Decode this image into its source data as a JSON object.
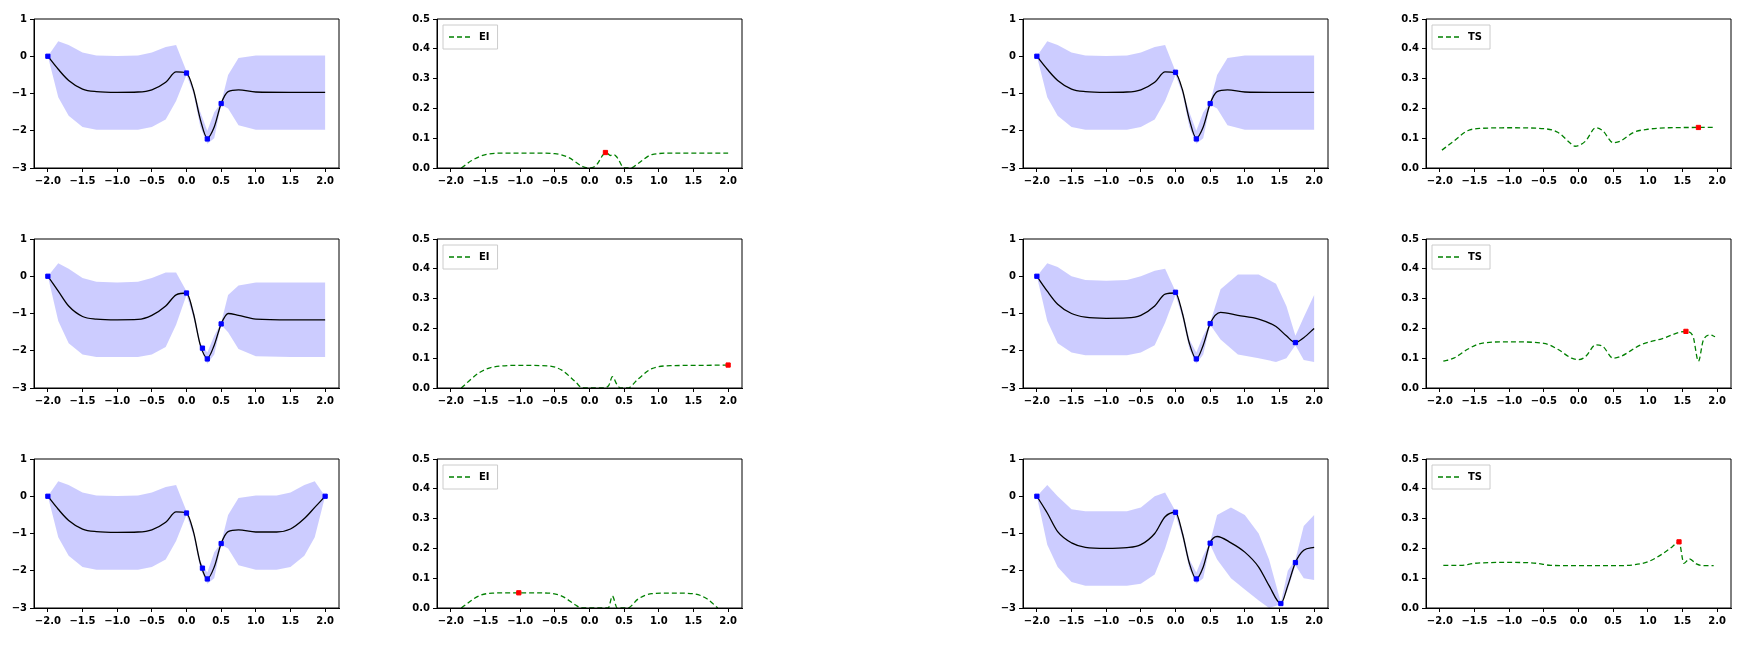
{
  "chart_data": [
    {
      "type": "line",
      "xlim": [
        -2.2,
        2.2
      ],
      "xticks": [
        {
          "value": -2,
          "label": "−2.0"
        },
        {
          "value": -1.5,
          "label": "−1.5"
        },
        {
          "value": -1,
          "label": "−1.0"
        },
        {
          "value": -0.5,
          "label": "−0.5"
        },
        {
          "value": 0,
          "label": "0.0"
        },
        {
          "value": 0.5,
          "label": "0.5"
        },
        {
          "value": 1,
          "label": "1.0"
        },
        {
          "value": 1.5,
          "label": "1.5"
        },
        {
          "value": 2,
          "label": "2.0"
        }
      ],
      "ylim": [
        -3,
        1
      ],
      "yticks": [
        {
          "value": -3,
          "label": "−3"
        },
        {
          "value": -2,
          "label": "−2"
        },
        {
          "value": -1,
          "label": "−1"
        },
        0,
        1
      ],
      "grid": false,
      "legend": false,
      "series": [
        {
          "color": "#000000",
          "marker": "none",
          "x": [
            -2,
            -1.85,
            -1.7,
            -1.5,
            -1.3,
            -1,
            -0.7,
            -0.5,
            -0.3,
            -0.15,
            0,
            0.1,
            0.2,
            0.3,
            0.4,
            0.5,
            0.6,
            0.75,
            1,
            1.5,
            2
          ],
          "values": [
            0,
            -0.35,
            -0.65,
            -0.88,
            -0.95,
            -0.97,
            -0.96,
            -0.9,
            -0.7,
            -0.42,
            -0.45,
            -0.9,
            -1.7,
            -2.2,
            -1.9,
            -1.27,
            -0.95,
            -0.9,
            -0.96,
            -0.97,
            -0.97
          ],
          "upper": [
            0,
            0.4,
            0.3,
            0.1,
            0.02,
            0.01,
            0.02,
            0.1,
            0.25,
            0.3,
            -0.4,
            -0.9,
            -1.5,
            -2,
            -1.5,
            -1.25,
            -0.5,
            -0.05,
            0.02,
            0.02,
            0.02
          ],
          "lower": [
            0,
            -1.1,
            -1.6,
            -1.9,
            -1.97,
            -1.97,
            -1.97,
            -1.9,
            -1.7,
            -1.2,
            -0.5,
            -1,
            -1.9,
            -2.35,
            -2.2,
            -1.3,
            -1.4,
            -1.85,
            -1.97,
            -1.97,
            -1.97
          ]
        },
        {
          "type": "scatter",
          "color": "#0000ff",
          "marker": "square",
          "x": [
            -2,
            0,
            0.3,
            0.5
          ],
          "values": [
            0,
            -0.45,
            -2.22,
            -1.27
          ]
        }
      ]
    },
    {
      "type": "line",
      "xlim": [
        -2.2,
        2.2
      ],
      "xticks": [
        {
          "value": -2,
          "label": "−2.0"
        },
        {
          "value": -1.5,
          "label": "−1.5"
        },
        {
          "value": -1,
          "label": "−1.0"
        },
        {
          "value": -0.5,
          "label": "−0.5"
        },
        {
          "value": 0,
          "label": "0.0"
        },
        {
          "value": 0.5,
          "label": "0.5"
        },
        {
          "value": 1,
          "label": "1.0"
        },
        {
          "value": 1.5,
          "label": "1.5"
        },
        {
          "value": 2,
          "label": "2.0"
        }
      ],
      "ylim": [
        0,
        0.5
      ],
      "yticks": [
        {
          "value": 0,
          "label": "0.0"
        },
        0.1,
        0.2,
        0.3,
        0.4,
        0.5
      ],
      "grid": false,
      "legend": "top left",
      "line_style": "dashed",
      "series": [
        {
          "name": "EI",
          "color": "#008000",
          "marker": "none",
          "x": [
            -1.85,
            -1.7,
            -1.5,
            -1.2,
            -0.8,
            -0.5,
            -0.3,
            -0.1,
            0,
            0.1,
            0.2,
            0.25,
            0.3,
            0.35,
            0.4,
            0.5,
            0.6,
            0.7,
            0.9,
            1.2,
            1.5,
            2
          ],
          "values": [
            0,
            0.025,
            0.045,
            0.05,
            0.05,
            0.048,
            0.035,
            0.005,
            0,
            0.01,
            0.045,
            0.05,
            0.042,
            0.045,
            0.035,
            0,
            0,
            0.015,
            0.045,
            0.05,
            0.05,
            0.05
          ]
        },
        {
          "type": "scatter",
          "color": "#ff0000",
          "marker": "square",
          "x": [
            0.23
          ],
          "values": [
            0.052
          ]
        }
      ]
    },
    {
      "type": "line",
      "xlim": [
        -2.2,
        2.2
      ],
      "xticks": [
        {
          "value": -2,
          "label": "−2.0"
        },
        {
          "value": -1.5,
          "label": "−1.5"
        },
        {
          "value": -1,
          "label": "−1.0"
        },
        {
          "value": -0.5,
          "label": "−0.5"
        },
        {
          "value": 0,
          "label": "0.0"
        },
        {
          "value": 0.5,
          "label": "0.5"
        },
        {
          "value": 1,
          "label": "1.0"
        },
        {
          "value": 1.5,
          "label": "1.5"
        },
        {
          "value": 2,
          "label": "2.0"
        }
      ],
      "ylim": [
        -3,
        1
      ],
      "yticks": [
        {
          "value": -3,
          "label": "−3"
        },
        {
          "value": -2,
          "label": "−2"
        },
        {
          "value": -1,
          "label": "−1"
        },
        0,
        1
      ],
      "grid": false,
      "legend": false,
      "series": [
        {
          "color": "#000000",
          "marker": "none",
          "x": [
            -2,
            -1.85,
            -1.7,
            -1.5,
            -1.3,
            -1,
            -0.7,
            -0.5,
            -0.3,
            -0.15,
            0,
            0.1,
            0.2,
            0.3,
            0.4,
            0.5,
            0.6,
            0.75,
            1,
            1.5,
            2
          ],
          "values": [
            0,
            -0.35,
            -0.65,
            -0.88,
            -0.95,
            -0.97,
            -0.96,
            -0.9,
            -0.7,
            -0.42,
            -0.45,
            -0.9,
            -1.7,
            -2.2,
            -1.9,
            -1.27,
            -0.95,
            -0.9,
            -0.96,
            -0.97,
            -0.97
          ],
          "upper": [
            0,
            0.4,
            0.3,
            0.1,
            0.02,
            0.01,
            0.02,
            0.1,
            0.25,
            0.3,
            -0.4,
            -0.9,
            -1.5,
            -2,
            -1.5,
            -1.25,
            -0.5,
            -0.05,
            0.02,
            0.02,
            0.02
          ],
          "lower": [
            0,
            -1.1,
            -1.6,
            -1.9,
            -1.97,
            -1.97,
            -1.97,
            -1.9,
            -1.7,
            -1.2,
            -0.5,
            -1,
            -1.9,
            -2.35,
            -2.2,
            -1.3,
            -1.4,
            -1.85,
            -1.97,
            -1.97,
            -1.97
          ]
        },
        {
          "type": "scatter",
          "color": "#0000ff",
          "marker": "square",
          "x": [
            -2,
            0,
            0.3,
            0.5
          ],
          "values": [
            0,
            -0.43,
            -2.22,
            -1.27
          ]
        }
      ]
    },
    {
      "type": "line",
      "xlim": [
        -2.2,
        2.2
      ],
      "xticks": [
        {
          "value": -2,
          "label": "−2.0"
        },
        {
          "value": -1.5,
          "label": "−1.5"
        },
        {
          "value": -1,
          "label": "−1.0"
        },
        {
          "value": -0.5,
          "label": "−0.5"
        },
        {
          "value": 0,
          "label": "0.0"
        },
        {
          "value": 0.5,
          "label": "0.5"
        },
        {
          "value": 1,
          "label": "1.0"
        },
        {
          "value": 1.5,
          "label": "1.5"
        },
        {
          "value": 2,
          "label": "2.0"
        }
      ],
      "ylim": [
        0,
        0.5
      ],
      "yticks": [
        {
          "value": 0,
          "label": "0.0"
        },
        0.1,
        0.2,
        0.3,
        0.4,
        0.5
      ],
      "grid": false,
      "legend": "top left",
      "line_style": "dashed",
      "series": [
        {
          "name": "TS",
          "color": "#008000",
          "marker": "none",
          "x": [
            -1.97,
            -1.8,
            -1.6,
            -1.4,
            -1,
            -0.5,
            -0.3,
            -0.1,
            -0.05,
            0.1,
            0.25,
            0.35,
            0.5,
            0.6,
            0.8,
            1,
            1.3,
            1.73,
            1.95
          ],
          "values": [
            0.06,
            0.09,
            0.125,
            0.133,
            0.135,
            0.132,
            0.12,
            0.08,
            0.073,
            0.09,
            0.135,
            0.125,
            0.085,
            0.09,
            0.12,
            0.13,
            0.135,
            0.136,
            0.136
          ]
        },
        {
          "type": "scatter",
          "color": "#ff0000",
          "marker": "square",
          "x": [
            1.73
          ],
          "values": [
            0.136
          ]
        }
      ]
    },
    {
      "type": "line",
      "xlim": [
        -2.2,
        2.2
      ],
      "xticks": [
        {
          "value": -2,
          "label": "−2.0"
        },
        {
          "value": -1.5,
          "label": "−1.5"
        },
        {
          "value": -1,
          "label": "−1.0"
        },
        {
          "value": -0.5,
          "label": "−0.5"
        },
        {
          "value": 0,
          "label": "0.0"
        },
        {
          "value": 0.5,
          "label": "0.5"
        },
        {
          "value": 1,
          "label": "1.0"
        },
        {
          "value": 1.5,
          "label": "1.5"
        },
        {
          "value": 2,
          "label": "2.0"
        }
      ],
      "ylim": [
        -3,
        1
      ],
      "yticks": [
        {
          "value": -3,
          "label": "−3"
        },
        {
          "value": -2,
          "label": "−2"
        },
        {
          "value": -1,
          "label": "−1"
        },
        0,
        1
      ],
      "grid": false,
      "legend": false,
      "series": [
        {
          "color": "#000000",
          "marker": "none",
          "x": [
            -2,
            -1.85,
            -1.7,
            -1.5,
            -1.3,
            -1,
            -0.7,
            -0.5,
            -0.3,
            -0.15,
            0,
            0.1,
            0.2,
            0.3,
            0.4,
            0.5,
            0.6,
            0.75,
            1,
            1.5,
            2
          ],
          "values": [
            0,
            -0.4,
            -0.8,
            -1.08,
            -1.15,
            -1.17,
            -1.16,
            -1.05,
            -0.8,
            -0.5,
            -0.45,
            -1,
            -1.85,
            -2.2,
            -1.85,
            -1.28,
            -1,
            -1.05,
            -1.15,
            -1.17,
            -1.17
          ],
          "upper": [
            0,
            0.35,
            0.2,
            -0.05,
            -0.15,
            -0.17,
            -0.15,
            -0.05,
            0.1,
            0.1,
            -0.4,
            -0.9,
            -1.8,
            -2.05,
            -1.6,
            -1.25,
            -0.5,
            -0.25,
            -0.17,
            -0.17,
            -0.17
          ],
          "lower": [
            0,
            -1.2,
            -1.8,
            -2.1,
            -2.17,
            -2.17,
            -2.17,
            -2.1,
            -1.9,
            -1.3,
            -0.5,
            -1.1,
            -1.95,
            -2.35,
            -2.1,
            -1.3,
            -1.5,
            -1.95,
            -2.15,
            -2.17,
            -2.17
          ]
        },
        {
          "type": "scatter",
          "color": "#0000ff",
          "marker": "square",
          "x": [
            -2,
            0,
            0.23,
            0.3,
            0.5
          ],
          "values": [
            0,
            -0.45,
            -1.93,
            -2.22,
            -1.28
          ]
        }
      ]
    },
    {
      "type": "line",
      "xlim": [
        -2.2,
        2.2
      ],
      "xticks": [
        {
          "value": -2,
          "label": "−2.0"
        },
        {
          "value": -1.5,
          "label": "−1.5"
        },
        {
          "value": -1,
          "label": "−1.0"
        },
        {
          "value": -0.5,
          "label": "−0.5"
        },
        {
          "value": 0,
          "label": "0.0"
        },
        {
          "value": 0.5,
          "label": "0.5"
        },
        {
          "value": 1,
          "label": "1.0"
        },
        {
          "value": 1.5,
          "label": "1.5"
        },
        {
          "value": 2,
          "label": "2.0"
        }
      ],
      "ylim": [
        0,
        0.5
      ],
      "yticks": [
        {
          "value": 0,
          "label": "0.0"
        },
        0.1,
        0.2,
        0.3,
        0.4,
        0.5
      ],
      "grid": false,
      "legend": "top left",
      "line_style": "dashed",
      "series": [
        {
          "name": "EI",
          "color": "#008000",
          "marker": "none",
          "x": [
            -1.85,
            -1.6,
            -1.4,
            -1,
            -0.6,
            -0.4,
            -0.2,
            -0.1,
            0.2,
            0.28,
            0.33,
            0.4,
            0.45,
            0.55,
            0.7,
            0.9,
            1.2,
            1.6,
            2
          ],
          "values": [
            0,
            0.05,
            0.07,
            0.076,
            0.074,
            0.06,
            0.02,
            0,
            0,
            0.01,
            0.038,
            0.01,
            0,
            0,
            0.03,
            0.065,
            0.075,
            0.076,
            0.077
          ]
        },
        {
          "type": "scatter",
          "color": "#ff0000",
          "marker": "square",
          "x": [
            2
          ],
          "values": [
            0.077
          ]
        }
      ]
    },
    {
      "type": "line",
      "xlim": [
        -2.2,
        2.2
      ],
      "xticks": [
        {
          "value": -2,
          "label": "−2.0"
        },
        {
          "value": -1.5,
          "label": "−1.5"
        },
        {
          "value": -1,
          "label": "−1.0"
        },
        {
          "value": -0.5,
          "label": "−0.5"
        },
        {
          "value": 0,
          "label": "0.0"
        },
        {
          "value": 0.5,
          "label": "0.5"
        },
        {
          "value": 1,
          "label": "1.0"
        },
        {
          "value": 1.5,
          "label": "1.5"
        },
        {
          "value": 2,
          "label": "2.0"
        }
      ],
      "ylim": [
        -3,
        1
      ],
      "yticks": [
        {
          "value": -3,
          "label": "−3"
        },
        {
          "value": -2,
          "label": "−2"
        },
        {
          "value": -1,
          "label": "−1"
        },
        0,
        1
      ],
      "grid": false,
      "legend": false,
      "series": [
        {
          "color": "#000000",
          "marker": "none",
          "x": [
            -2,
            -1.85,
            -1.7,
            -1.5,
            -1.3,
            -1,
            -0.7,
            -0.5,
            -0.3,
            -0.15,
            0,
            0.1,
            0.2,
            0.3,
            0.4,
            0.5,
            0.65,
            0.9,
            1.2,
            1.45,
            1.6,
            1.73,
            1.85,
            2
          ],
          "values": [
            0,
            -0.4,
            -0.75,
            -1,
            -1.1,
            -1.13,
            -1.12,
            -1.05,
            -0.8,
            -0.48,
            -0.45,
            -1,
            -1.8,
            -2.22,
            -1.85,
            -1.27,
            -0.97,
            -1.05,
            -1.15,
            -1.35,
            -1.6,
            -1.78,
            -1.65,
            -1.4
          ],
          "upper": [
            0,
            0.35,
            0.25,
            0,
            -0.1,
            -0.12,
            -0.1,
            0,
            0.15,
            0.2,
            -0.4,
            -0.9,
            -1.7,
            -2.05,
            -1.6,
            -1.25,
            -0.35,
            0.05,
            0.05,
            -0.2,
            -0.8,
            -1.6,
            -1.1,
            -0.5
          ],
          "lower": [
            0,
            -1.2,
            -1.8,
            -2.05,
            -2.12,
            -2.12,
            -2.12,
            -2.05,
            -1.85,
            -1.25,
            -0.5,
            -1.1,
            -1.95,
            -2.35,
            -2.1,
            -1.3,
            -1.7,
            -2.1,
            -2.2,
            -2.3,
            -2.2,
            -1.85,
            -2.25,
            -2.3
          ]
        },
        {
          "type": "scatter",
          "color": "#0000ff",
          "marker": "square",
          "x": [
            -2,
            0,
            0.3,
            0.5,
            1.73
          ],
          "values": [
            0,
            -0.43,
            -2.22,
            -1.27,
            -1.78
          ]
        }
      ]
    },
    {
      "type": "line",
      "xlim": [
        -2.2,
        2.2
      ],
      "xticks": [
        {
          "value": -2,
          "label": "−2.0"
        },
        {
          "value": -1.5,
          "label": "−1.5"
        },
        {
          "value": -1,
          "label": "−1.0"
        },
        {
          "value": -0.5,
          "label": "−0.5"
        },
        {
          "value": 0,
          "label": "0.0"
        },
        {
          "value": 0.5,
          "label": "0.5"
        },
        {
          "value": 1,
          "label": "1.0"
        },
        {
          "value": 1.5,
          "label": "1.5"
        },
        {
          "value": 2,
          "label": "2.0"
        }
      ],
      "ylim": [
        0,
        0.5
      ],
      "yticks": [
        {
          "value": 0,
          "label": "0.0"
        },
        0.1,
        0.2,
        0.3,
        0.4,
        0.5
      ],
      "grid": false,
      "legend": "top left",
      "line_style": "dashed",
      "series": [
        {
          "name": "TS",
          "color": "#008000",
          "marker": "none",
          "x": [
            -1.95,
            -1.8,
            -1.6,
            -1.4,
            -1,
            -0.5,
            -0.3,
            -0.1,
            0,
            0.1,
            0.25,
            0.35,
            0.5,
            0.6,
            0.9,
            1.2,
            1.55,
            1.65,
            1.73,
            1.8,
            1.9,
            1.97
          ],
          "values": [
            0.09,
            0.1,
            0.13,
            0.15,
            0.155,
            0.15,
            0.13,
            0.1,
            0.095,
            0.105,
            0.145,
            0.14,
            0.1,
            0.105,
            0.145,
            0.165,
            0.19,
            0.175,
            0.09,
            0.16,
            0.178,
            0.172
          ]
        },
        {
          "type": "scatter",
          "color": "#ff0000",
          "marker": "square",
          "x": [
            1.55
          ],
          "values": [
            0.19
          ]
        }
      ]
    },
    {
      "type": "line",
      "xlim": [
        -2.2,
        2.2
      ],
      "xticks": [
        {
          "value": -2,
          "label": "−2.0"
        },
        {
          "value": -1.5,
          "label": "−1.5"
        },
        {
          "value": -1,
          "label": "−1.0"
        },
        {
          "value": -0.5,
          "label": "−0.5"
        },
        {
          "value": 0,
          "label": "0.0"
        },
        {
          "value": 0.5,
          "label": "0.5"
        },
        {
          "value": 1,
          "label": "1.0"
        },
        {
          "value": 1.5,
          "label": "1.5"
        },
        {
          "value": 2,
          "label": "2.0"
        }
      ],
      "ylim": [
        -3,
        1
      ],
      "yticks": [
        {
          "value": -3,
          "label": "−3"
        },
        {
          "value": -2,
          "label": "−2"
        },
        {
          "value": -1,
          "label": "−1"
        },
        0,
        1
      ],
      "grid": false,
      "legend": false,
      "series": [
        {
          "color": "#000000",
          "marker": "none",
          "x": [
            -2,
            -1.85,
            -1.7,
            -1.5,
            -1.3,
            -1,
            -0.7,
            -0.5,
            -0.3,
            -0.15,
            0,
            0.1,
            0.2,
            0.3,
            0.4,
            0.5,
            0.6,
            0.75,
            1,
            1.3,
            1.5,
            1.7,
            1.85,
            2
          ],
          "values": [
            0,
            -0.35,
            -0.65,
            -0.88,
            -0.95,
            -0.97,
            -0.96,
            -0.9,
            -0.7,
            -0.42,
            -0.45,
            -0.95,
            -1.8,
            -2.22,
            -1.9,
            -1.27,
            -0.95,
            -0.9,
            -0.96,
            -0.96,
            -0.88,
            -0.6,
            -0.3,
            0
          ],
          "upper": [
            0,
            0.4,
            0.3,
            0.1,
            0.02,
            0.01,
            0.02,
            0.1,
            0.25,
            0.3,
            -0.4,
            -0.9,
            -1.75,
            -2.05,
            -1.5,
            -1.25,
            -0.5,
            -0.05,
            0.02,
            0.02,
            0.1,
            0.3,
            0.4,
            0
          ],
          "lower": [
            0,
            -1.1,
            -1.6,
            -1.9,
            -1.97,
            -1.97,
            -1.97,
            -1.9,
            -1.7,
            -1.2,
            -0.5,
            -1.05,
            -1.95,
            -2.35,
            -2.2,
            -1.3,
            -1.4,
            -1.85,
            -1.97,
            -1.97,
            -1.9,
            -1.6,
            -1.1,
            0
          ]
        },
        {
          "type": "scatter",
          "color": "#0000ff",
          "marker": "square",
          "x": [
            -2,
            0,
            0.23,
            0.3,
            0.5,
            2
          ],
          "values": [
            0,
            -0.45,
            -1.93,
            -2.22,
            -1.27,
            0
          ]
        }
      ]
    },
    {
      "type": "line",
      "xlim": [
        -2.2,
        2.2
      ],
      "xticks": [
        {
          "value": -2,
          "label": "−2.0"
        },
        {
          "value": -1.5,
          "label": "−1.5"
        },
        {
          "value": -1,
          "label": "−1.0"
        },
        {
          "value": -0.5,
          "label": "−0.5"
        },
        {
          "value": 0,
          "label": "0.0"
        },
        {
          "value": 0.5,
          "label": "0.5"
        },
        {
          "value": 1,
          "label": "1.0"
        },
        {
          "value": 1.5,
          "label": "1.5"
        },
        {
          "value": 2,
          "label": "2.0"
        }
      ],
      "ylim": [
        0,
        0.5
      ],
      "yticks": [
        {
          "value": 0,
          "label": "0.0"
        },
        0.1,
        0.2,
        0.3,
        0.4,
        0.5
      ],
      "grid": false,
      "legend": "top left",
      "line_style": "dashed",
      "series": [
        {
          "name": "EI",
          "color": "#008000",
          "marker": "none",
          "x": [
            -1.85,
            -1.6,
            -1.4,
            -1,
            -0.6,
            -0.4,
            -0.2,
            -0.12,
            0.27,
            0.33,
            0.4,
            0.55,
            0.7,
            0.9,
            1.2,
            1.5,
            1.7,
            1.85
          ],
          "values": [
            0,
            0.04,
            0.05,
            0.051,
            0.05,
            0.04,
            0.01,
            0,
            0,
            0.04,
            0,
            0,
            0.03,
            0.048,
            0.05,
            0.048,
            0.03,
            0
          ]
        },
        {
          "type": "scatter",
          "color": "#ff0000",
          "marker": "square",
          "x": [
            -1.02
          ],
          "values": [
            0.051
          ]
        }
      ]
    },
    {
      "type": "line",
      "xlim": [
        -2.2,
        2.2
      ],
      "xticks": [
        {
          "value": -2,
          "label": "−2.0"
        },
        {
          "value": -1.5,
          "label": "−1.5"
        },
        {
          "value": -1,
          "label": "−1.0"
        },
        {
          "value": -0.5,
          "label": "−0.5"
        },
        {
          "value": 0,
          "label": "0.0"
        },
        {
          "value": 0.5,
          "label": "0.5"
        },
        {
          "value": 1,
          "label": "1.0"
        },
        {
          "value": 1.5,
          "label": "1.5"
        },
        {
          "value": 2,
          "label": "2.0"
        }
      ],
      "ylim": [
        -3,
        1
      ],
      "yticks": [
        {
          "value": -3,
          "label": "−3"
        },
        {
          "value": -2,
          "label": "−2"
        },
        {
          "value": -1,
          "label": "−1"
        },
        0,
        1
      ],
      "grid": false,
      "legend": false,
      "series": [
        {
          "color": "#000000",
          "marker": "none",
          "x": [
            -2,
            -1.85,
            -1.7,
            -1.5,
            -1.3,
            -1,
            -0.7,
            -0.5,
            -0.3,
            -0.15,
            0,
            0.1,
            0.2,
            0.3,
            0.4,
            0.5,
            0.6,
            0.8,
            1,
            1.2,
            1.35,
            1.52,
            1.62,
            1.73,
            1.85,
            2
          ],
          "values": [
            0,
            -0.45,
            -0.95,
            -1.25,
            -1.37,
            -1.4,
            -1.38,
            -1.3,
            -1,
            -0.55,
            -0.43,
            -1,
            -1.8,
            -2.22,
            -1.9,
            -1.25,
            -1.08,
            -1.25,
            -1.5,
            -1.9,
            -2.4,
            -2.88,
            -2.4,
            -1.78,
            -1.45,
            -1.37
          ],
          "upper": [
            0,
            0.3,
            0,
            -0.35,
            -0.4,
            -0.4,
            -0.4,
            -0.3,
            0,
            0.1,
            -0.4,
            -0.9,
            -1.7,
            -2.05,
            -1.6,
            -1.22,
            -0.5,
            -0.3,
            -0.5,
            -1,
            -1.7,
            -2.85,
            -2,
            -1.7,
            -0.8,
            -0.5
          ],
          "lower": [
            0,
            -1.3,
            -1.9,
            -2.3,
            -2.4,
            -2.4,
            -2.4,
            -2.35,
            -2.1,
            -1.4,
            -0.5,
            -1.1,
            -1.95,
            -2.35,
            -2.2,
            -1.3,
            -1.7,
            -2.2,
            -2.5,
            -2.8,
            -3,
            -2.9,
            -2.5,
            -1.85,
            -2.2,
            -2.25
          ]
        },
        {
          "type": "scatter",
          "color": "#0000ff",
          "marker": "square",
          "x": [
            -2,
            0,
            0.3,
            0.5,
            1.52,
            1.73
          ],
          "values": [
            0,
            -0.43,
            -2.22,
            -1.26,
            -2.88,
            -1.78
          ]
        }
      ]
    },
    {
      "type": "line",
      "xlim": [
        -2.2,
        2.2
      ],
      "xticks": [
        {
          "value": -2,
          "label": "−2.0"
        },
        {
          "value": -1.5,
          "label": "−1.5"
        },
        {
          "value": -1,
          "label": "−1.0"
        },
        {
          "value": -0.5,
          "label": "−0.5"
        },
        {
          "value": 0,
          "label": "0.0"
        },
        {
          "value": 0.5,
          "label": "0.5"
        },
        {
          "value": 1,
          "label": "1.0"
        },
        {
          "value": 1.5,
          "label": "1.5"
        },
        {
          "value": 2,
          "label": "2.0"
        }
      ],
      "ylim": [
        0,
        0.5
      ],
      "yticks": [
        {
          "value": 0,
          "label": "0.0"
        },
        0.1,
        0.2,
        0.3,
        0.4,
        0.5
      ],
      "grid": false,
      "legend": "top left",
      "line_style": "dashed",
      "series": [
        {
          "name": "TS",
          "color": "#008000",
          "marker": "none",
          "x": [
            -1.95,
            -1.7,
            -1.5,
            -1,
            -0.6,
            -0.4,
            0,
            0.5,
            0.8,
            1,
            1.2,
            1.35,
            1.45,
            1.52,
            1.6,
            1.7,
            1.8,
            1.95
          ],
          "values": [
            0.143,
            0.143,
            0.15,
            0.153,
            0.15,
            0.143,
            0.142,
            0.142,
            0.145,
            0.155,
            0.18,
            0.205,
            0.222,
            0.15,
            0.165,
            0.148,
            0.142,
            0.142
          ]
        },
        {
          "type": "scatter",
          "color": "#ff0000",
          "marker": "square",
          "x": [
            1.45
          ],
          "values": [
            0.222
          ]
        }
      ]
    }
  ]
}
